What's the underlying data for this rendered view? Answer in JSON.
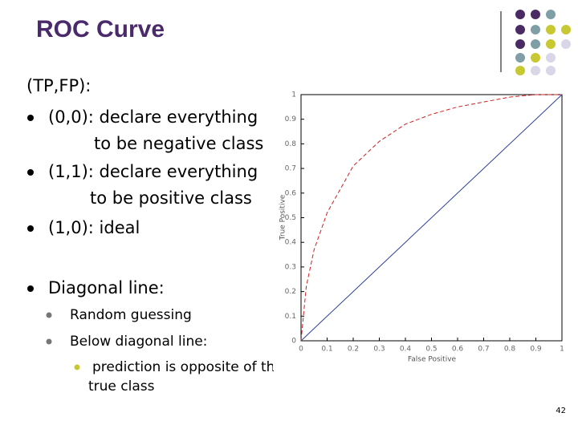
{
  "slide": {
    "title": "ROC Curve",
    "heading": "(TP,FP):",
    "bullets": [
      {
        "lines": [
          "(0,0): declare everything",
          "to be negative class"
        ]
      },
      {
        "lines": [
          "(1,1): declare everything",
          "to be positive class"
        ]
      },
      {
        "lines": [
          "(1,0): ideal"
        ]
      },
      {
        "lines": [
          "Diagonal line:"
        ]
      }
    ],
    "sub_bullets": [
      "Random guessing",
      "Below diagonal line:"
    ],
    "sub_sub_bullet": {
      "lines": [
        "prediction is opposite of th",
        "true class"
      ]
    },
    "page_number": "42"
  },
  "chart_data": {
    "type": "line",
    "xlabel": "False Positive",
    "ylabel": "True Positive",
    "x": [
      0,
      0.02,
      0.05,
      0.1,
      0.2,
      0.3,
      0.4,
      0.5,
      0.6,
      0.7,
      0.8,
      0.9,
      1
    ],
    "series": [
      {
        "color": "#d02020",
        "dashed": true,
        "values": [
          0,
          0.22,
          0.37,
          0.52,
          0.71,
          0.81,
          0.88,
          0.92,
          0.95,
          0.97,
          0.99,
          1,
          1
        ]
      },
      {
        "color": "#3040a0",
        "dashed": false,
        "values": [
          0,
          0.02,
          0.05,
          0.1,
          0.2,
          0.3,
          0.4,
          0.5,
          0.6,
          0.7,
          0.8,
          0.9,
          1
        ]
      }
    ],
    "xlim": [
      0,
      1
    ],
    "ylim": [
      0,
      1
    ],
    "xticks": [
      0,
      0.1,
      0.2,
      0.3,
      0.4,
      0.5,
      0.6,
      0.7,
      0.8,
      0.9,
      1
    ],
    "yticks": [
      0,
      0.1,
      0.2,
      0.3,
      0.4,
      0.5,
      0.6,
      0.7,
      0.8,
      0.9,
      1
    ]
  }
}
